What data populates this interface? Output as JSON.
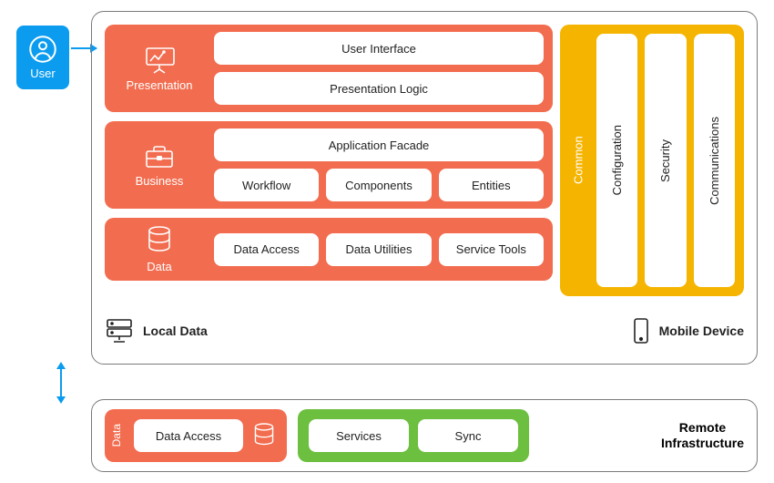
{
  "colors": {
    "user_bg": "#0b9cef",
    "arrow": "#0b9cef",
    "container_border": "#7a7a7a",
    "layer_bg": "#f26c4f",
    "common_bg": "#f5b400",
    "services_bg": "#6cbf3f",
    "pill_bg": "#ffffff",
    "text_dark": "#222222",
    "text_light": "#ffffff"
  },
  "user": {
    "label": "User"
  },
  "main": {
    "layers": [
      {
        "name": "Presentation",
        "icon": "presentation-icon",
        "rows": [
          [
            "User Interface"
          ],
          [
            "Presentation Logic"
          ]
        ]
      },
      {
        "name": "Business",
        "icon": "briefcase-icon",
        "rows": [
          [
            "Application Facade"
          ],
          [
            "Workflow",
            "Components",
            "Entities"
          ]
        ]
      },
      {
        "name": "Data",
        "icon": "database-icon",
        "rows": [
          [
            "Data Access",
            "Data Utilities",
            "Service Tools"
          ]
        ]
      }
    ],
    "common": {
      "title": "Common",
      "columns": [
        "Configuration",
        "Security",
        "Communications"
      ]
    },
    "footer": {
      "local_data_label": "Local Data",
      "mobile_device_label": "Mobile Device"
    }
  },
  "remote": {
    "data_label": "Data",
    "data_pill": "Data Access",
    "services": [
      "Services",
      "Sync"
    ],
    "label_line1": "Remote",
    "label_line2": "Infrastructure"
  },
  "typography": {
    "base_fontsize": 13,
    "header_fontsize": 14
  }
}
